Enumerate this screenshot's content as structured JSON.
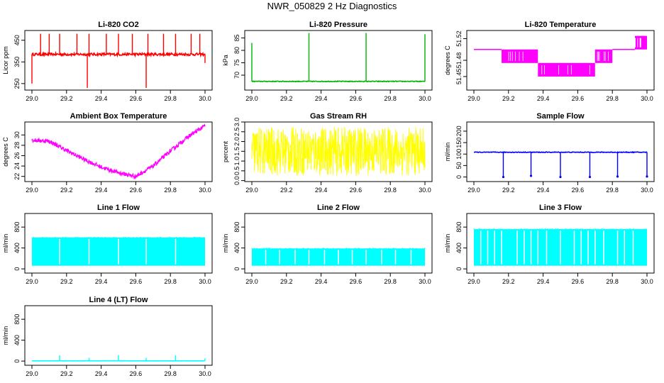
{
  "page": {
    "title": "NWR_050829  2 Hz Diagnostics"
  },
  "colors": {
    "red": "#ff0000",
    "green": "#00b400",
    "magenta": "#ff00ff",
    "yellow": "#ffff00",
    "blue": "#0000ff",
    "cyan": "#00ffff",
    "axis": "#000000"
  },
  "chart_data": [
    {
      "id": "co2",
      "type": "line",
      "title": "Li-820 CO2",
      "xlabel": "",
      "ylabel": "Licor ppm",
      "xlim": [
        29.0,
        30.0
      ],
      "ylim": [
        220,
        495
      ],
      "x_ticks": [
        29.0,
        29.2,
        29.4,
        29.6,
        29.8,
        30.0
      ],
      "x_tick_labels": [
        "29.0",
        "29.2",
        "29.4",
        "29.6",
        "29.8",
        "30.0"
      ],
      "y_ticks": [
        250,
        350,
        450
      ],
      "y_tick_labels": [
        "250",
        "350",
        "450"
      ],
      "color": "red",
      "style": "line",
      "baseline": 385,
      "noise": 6,
      "spikes": [
        {
          "x": 29.0,
          "y": 250
        },
        {
          "x": 29.05,
          "y": 480
        },
        {
          "x": 29.1,
          "y": 480
        },
        {
          "x": 29.16,
          "y": 480
        },
        {
          "x": 29.26,
          "y": 480
        },
        {
          "x": 29.32,
          "y": 230
        },
        {
          "x": 29.33,
          "y": 480
        },
        {
          "x": 29.43,
          "y": 480
        },
        {
          "x": 29.5,
          "y": 480
        },
        {
          "x": 29.58,
          "y": 480
        },
        {
          "x": 29.66,
          "y": 230
        },
        {
          "x": 29.67,
          "y": 480
        },
        {
          "x": 29.76,
          "y": 480
        },
        {
          "x": 29.83,
          "y": 480
        },
        {
          "x": 29.92,
          "y": 480
        },
        {
          "x": 29.97,
          "y": 480
        },
        {
          "x": 30.0,
          "y": 345
        }
      ]
    },
    {
      "id": "pressure",
      "type": "line",
      "title": "Li-820 Pressure",
      "xlabel": "",
      "ylabel": "kPa",
      "xlim": [
        29.0,
        30.0
      ],
      "ylim": [
        64,
        88
      ],
      "x_ticks": [
        29.0,
        29.2,
        29.4,
        29.6,
        29.8,
        30.0
      ],
      "x_tick_labels": [
        "29.0",
        "29.2",
        "29.4",
        "29.6",
        "29.8",
        "30.0"
      ],
      "y_ticks": [
        70,
        75,
        80,
        85
      ],
      "y_tick_labels": [
        "70",
        "75",
        "80",
        "85"
      ],
      "color": "green",
      "style": "line",
      "baseline": 67.5,
      "noise": 0.15,
      "spikes": [
        {
          "x": 29.0,
          "y": 83
        },
        {
          "x": 29.33,
          "y": 87
        },
        {
          "x": 29.66,
          "y": 87
        },
        {
          "x": 30.0,
          "y": 86.5
        }
      ]
    },
    {
      "id": "temperature",
      "type": "area",
      "title": "Li-820 Temperature",
      "xlabel": "",
      "ylabel": "degrees C",
      "xlim": [
        29.0,
        30.0
      ],
      "ylim": [
        51.425,
        51.535
      ],
      "x_ticks": [
        29.0,
        29.2,
        29.4,
        29.6,
        29.8,
        30.0
      ],
      "x_tick_labels": [
        "29.0",
        "29.2",
        "29.4",
        "29.6",
        "29.8",
        "30.0"
      ],
      "y_ticks": [
        51.45,
        51.48,
        51.52
      ],
      "y_tick_labels": [
        "51.45",
        "51.48",
        "51.52"
      ],
      "color": "magenta",
      "style": "bands",
      "segments": [
        {
          "x0": 29.0,
          "x1": 29.16,
          "lo": 51.5,
          "hi": 51.5
        },
        {
          "x0": 29.16,
          "x1": 29.37,
          "lo": 51.475,
          "hi": 51.5
        },
        {
          "x0": 29.37,
          "x1": 29.7,
          "lo": 51.45,
          "hi": 51.475
        },
        {
          "x0": 29.7,
          "x1": 29.8,
          "lo": 51.475,
          "hi": 51.5
        },
        {
          "x0": 29.8,
          "x1": 29.93,
          "lo": 51.5,
          "hi": 51.5
        },
        {
          "x0": 29.93,
          "x1": 30.0,
          "lo": 51.5,
          "hi": 51.525
        }
      ]
    },
    {
      "id": "ambient",
      "type": "line",
      "title": "Ambient Box Temperature",
      "xlabel": "",
      "ylabel": "degrees C",
      "xlim": [
        29.0,
        30.0
      ],
      "ylim": [
        21.0,
        32.5
      ],
      "x_ticks": [
        29.0,
        29.2,
        29.4,
        29.6,
        29.8,
        30.0
      ],
      "x_tick_labels": [
        "29.0",
        "29.2",
        "29.4",
        "29.6",
        "29.8",
        "30.0"
      ],
      "y_ticks": [
        22,
        24,
        26,
        28,
        30
      ],
      "y_tick_labels": [
        "22",
        "24",
        "26",
        "28",
        "30"
      ],
      "color": "magenta",
      "style": "curve",
      "noise": 0.4,
      "points": [
        {
          "x": 29.0,
          "y": 29.0
        },
        {
          "x": 29.1,
          "y": 28.8
        },
        {
          "x": 29.2,
          "y": 27.0
        },
        {
          "x": 29.3,
          "y": 25.3
        },
        {
          "x": 29.4,
          "y": 23.8
        },
        {
          "x": 29.5,
          "y": 22.7
        },
        {
          "x": 29.6,
          "y": 22.0
        },
        {
          "x": 29.7,
          "y": 24.0
        },
        {
          "x": 29.8,
          "y": 26.9
        },
        {
          "x": 29.9,
          "y": 29.6
        },
        {
          "x": 30.0,
          "y": 31.8
        }
      ]
    },
    {
      "id": "rh",
      "type": "area",
      "title": "Gas Stream RH",
      "xlabel": "",
      "ylabel": "percent",
      "xlim": [
        29.0,
        30.0
      ],
      "ylim": [
        -0.05,
        3.0
      ],
      "x_ticks": [
        29.0,
        29.2,
        29.4,
        29.6,
        29.8,
        30.0
      ],
      "x_tick_labels": [
        "29.0",
        "29.2",
        "29.4",
        "29.6",
        "29.8",
        "30.0"
      ],
      "y_ticks": [
        0.0,
        0.5,
        1.0,
        1.5,
        2.0,
        2.5,
        3.0
      ],
      "y_tick_labels": [
        "0.0",
        "0.5",
        "1.0",
        "1.5",
        "2.0",
        "2.5",
        "3.0"
      ],
      "color": "yellow",
      "style": "noise",
      "lo": 0.25,
      "hi": 2.75,
      "mean": 1.5
    },
    {
      "id": "sample",
      "type": "line",
      "title": "Sample Flow",
      "xlabel": "",
      "ylabel": "ml/min",
      "xlim": [
        29.0,
        30.0
      ],
      "ylim": [
        -20,
        240
      ],
      "x_ticks": [
        29.0,
        29.2,
        29.4,
        29.6,
        29.8,
        30.0
      ],
      "x_tick_labels": [
        "29.0",
        "29.2",
        "29.4",
        "29.6",
        "29.8",
        "30.0"
      ],
      "y_ticks": [
        0,
        50,
        100,
        150,
        200
      ],
      "y_tick_labels": [
        "0",
        "50",
        "100",
        "150",
        "200"
      ],
      "color": "blue",
      "style": "line",
      "baseline": 108,
      "noise": 1.5,
      "spikes": [
        {
          "x": 29.17,
          "y": 0
        },
        {
          "x": 29.33,
          "y": 5
        },
        {
          "x": 29.5,
          "y": 0
        },
        {
          "x": 29.67,
          "y": 0
        },
        {
          "x": 29.83,
          "y": 2
        },
        {
          "x": 30.0,
          "y": 2
        }
      ]
    },
    {
      "id": "line1",
      "type": "area",
      "title": "Line 1 Flow",
      "xlabel": "",
      "ylabel": "ml/min",
      "xlim": [
        29.0,
        30.0
      ],
      "ylim": [
        -80,
        1060
      ],
      "x_ticks": [
        29.0,
        29.2,
        29.4,
        29.6,
        29.8,
        30.0
      ],
      "x_tick_labels": [
        "29.0",
        "29.2",
        "29.4",
        "29.6",
        "29.8",
        "30.0"
      ],
      "y_ticks": [
        0,
        400,
        800
      ],
      "y_tick_labels": [
        "0",
        "400",
        "800"
      ],
      "color": "cyan",
      "style": "block",
      "lo": 60,
      "hi": 600,
      "gaps": [
        29.16,
        29.33,
        29.5,
        29.66,
        29.83
      ]
    },
    {
      "id": "line2",
      "type": "area",
      "title": "Line 2 Flow",
      "xlabel": "",
      "ylabel": "ml/min",
      "xlim": [
        29.0,
        30.0
      ],
      "ylim": [
        -80,
        1060
      ],
      "x_ticks": [
        29.0,
        29.2,
        29.4,
        29.6,
        29.8,
        30.0
      ],
      "x_tick_labels": [
        "29.0",
        "29.2",
        "29.4",
        "29.6",
        "29.8",
        "30.0"
      ],
      "y_ticks": [
        0,
        400,
        800
      ],
      "y_tick_labels": [
        "0",
        "400",
        "800"
      ],
      "color": "cyan",
      "style": "block",
      "lo": 60,
      "hi": 390,
      "gaps": [
        29.08,
        29.16,
        29.25,
        29.33,
        29.42,
        29.5,
        29.58,
        29.66,
        29.75,
        29.83,
        29.92
      ]
    },
    {
      "id": "line3",
      "type": "area",
      "title": "Line 3 Flow",
      "xlabel": "",
      "ylabel": "ml/min",
      "xlim": [
        29.0,
        30.0
      ],
      "ylim": [
        -80,
        1060
      ],
      "x_ticks": [
        29.0,
        29.2,
        29.4,
        29.6,
        29.8,
        30.0
      ],
      "x_tick_labels": [
        "29.0",
        "29.2",
        "29.4",
        "29.6",
        "29.8",
        "30.0"
      ],
      "y_ticks": [
        0,
        400,
        800
      ],
      "y_tick_labels": [
        "0",
        "400",
        "800"
      ],
      "color": "cyan",
      "style": "block",
      "lo": 60,
      "hi": 760,
      "gaps": [
        29.04,
        29.08,
        29.12,
        29.16,
        29.25,
        29.29,
        29.33,
        29.37,
        29.42,
        29.5,
        29.58,
        29.62,
        29.66,
        29.7,
        29.75,
        29.83,
        29.87,
        29.92
      ]
    },
    {
      "id": "line4",
      "type": "line",
      "title": "Line 4 (LT) Flow",
      "xlabel": "",
      "ylabel": "ml/min",
      "xlim": [
        29.0,
        30.0
      ],
      "ylim": [
        -80,
        1060
      ],
      "x_ticks": [
        29.0,
        29.2,
        29.4,
        29.6,
        29.8,
        30.0
      ],
      "x_tick_labels": [
        "29.0",
        "29.2",
        "29.4",
        "29.6",
        "29.8",
        "30.0"
      ],
      "y_ticks": [
        0,
        400,
        800
      ],
      "y_tick_labels": [
        "0",
        "400",
        "800"
      ],
      "color": "cyan",
      "style": "line",
      "baseline": 5,
      "noise": 1,
      "spikes": [
        {
          "x": 29.16,
          "y": 110
        },
        {
          "x": 29.33,
          "y": 60
        },
        {
          "x": 29.5,
          "y": 115
        },
        {
          "x": 29.66,
          "y": 60
        },
        {
          "x": 29.83,
          "y": 110
        },
        {
          "x": 30.0,
          "y": 50
        }
      ]
    }
  ]
}
